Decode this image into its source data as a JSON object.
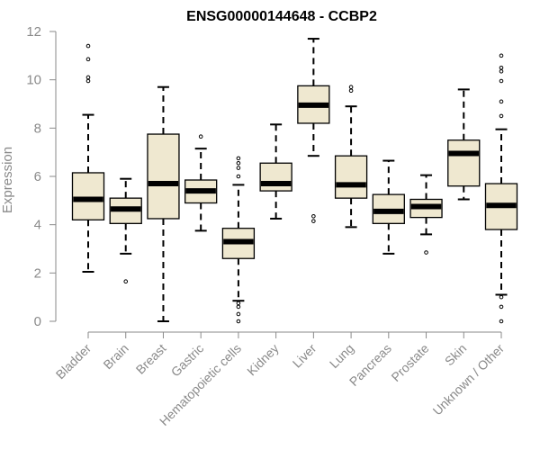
{
  "chart_data": {
    "type": "box",
    "title": "ENSG00000144648 - CCBP2",
    "xlabel": "",
    "ylabel": "Expression",
    "ylim": [
      0,
      12
    ],
    "yticks": [
      0,
      2,
      4,
      6,
      8,
      10,
      12
    ],
    "grid": false,
    "colors": {
      "box_fill": "#efe8d0",
      "line": "#000000",
      "axis": "#8a8a8a"
    },
    "categories": [
      "Bladder",
      "Brain",
      "Breast",
      "Gastric",
      "Hematopoietic cells",
      "Kidney",
      "Liver",
      "Lung",
      "Pancreas",
      "Prostate",
      "Skin",
      "Unknown / Other"
    ],
    "boxes": [
      {
        "min": 2.05,
        "q1": 4.2,
        "median": 5.05,
        "q3": 6.15,
        "max": 8.55,
        "outliers": [
          9.95,
          10.1,
          10.85,
          11.4
        ]
      },
      {
        "min": 2.8,
        "q1": 4.05,
        "median": 4.65,
        "q3": 5.1,
        "max": 5.9,
        "outliers": [
          1.65
        ]
      },
      {
        "min": 0.0,
        "q1": 4.25,
        "median": 5.7,
        "q3": 7.75,
        "max": 9.7,
        "outliers": []
      },
      {
        "min": 3.75,
        "q1": 4.9,
        "median": 5.4,
        "q3": 5.85,
        "max": 7.15,
        "outliers": [
          7.65
        ]
      },
      {
        "min": 0.85,
        "q1": 2.6,
        "median": 3.3,
        "q3": 3.85,
        "max": 5.65,
        "outliers": [
          0.0,
          0.3,
          0.6,
          0.75,
          6.0,
          6.35,
          6.55,
          6.75
        ]
      },
      {
        "min": 4.25,
        "q1": 5.4,
        "median": 5.7,
        "q3": 6.55,
        "max": 8.15,
        "outliers": []
      },
      {
        "min": 6.85,
        "q1": 8.2,
        "median": 8.95,
        "q3": 9.75,
        "max": 11.7,
        "outliers": [
          4.15,
          4.35
        ]
      },
      {
        "min": 3.9,
        "q1": 5.1,
        "median": 5.65,
        "q3": 6.85,
        "max": 8.9,
        "outliers": [
          9.55,
          9.7
        ]
      },
      {
        "min": 2.8,
        "q1": 4.05,
        "median": 4.55,
        "q3": 5.25,
        "max": 6.65,
        "outliers": []
      },
      {
        "min": 3.6,
        "q1": 4.3,
        "median": 4.75,
        "q3": 5.05,
        "max": 6.05,
        "outliers": [
          2.85
        ]
      },
      {
        "min": 5.05,
        "q1": 5.6,
        "median": 6.95,
        "q3": 7.5,
        "max": 9.6,
        "outliers": []
      },
      {
        "min": 1.1,
        "q1": 3.8,
        "median": 4.8,
        "q3": 5.7,
        "max": 7.95,
        "outliers": [
          0.0,
          0.6,
          1.0,
          8.5,
          9.1,
          9.95,
          10.35,
          10.5,
          11.0
        ]
      }
    ]
  }
}
